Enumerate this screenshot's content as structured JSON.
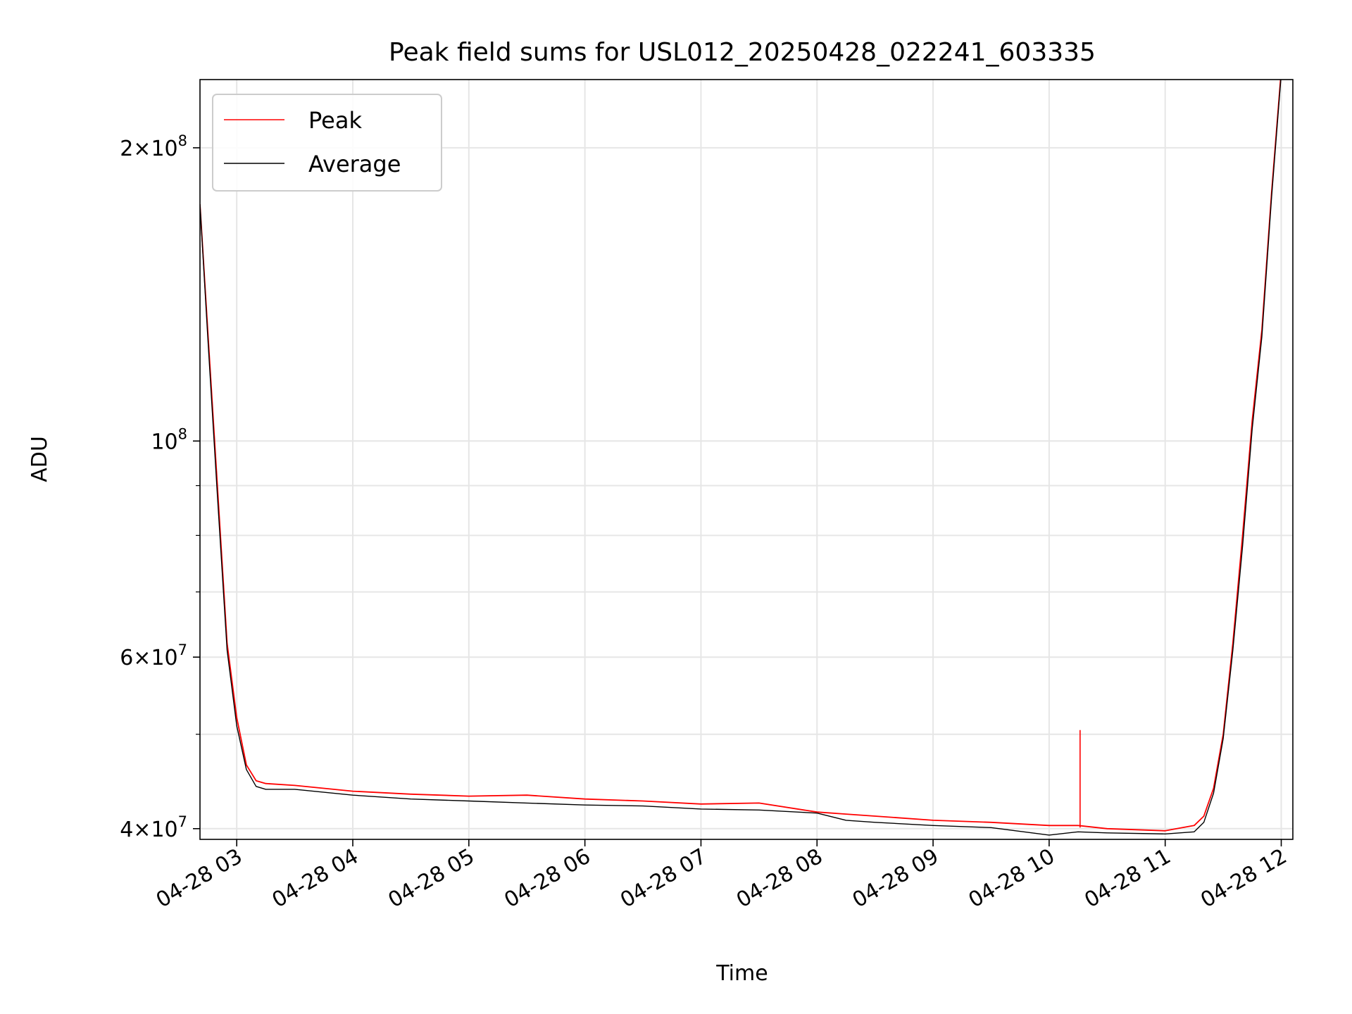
{
  "chart_data": {
    "type": "line",
    "title": "Peak field sums for USL012_20250428_022241_603335",
    "xlabel": "Time",
    "ylabel": "ADU",
    "yscale": "log",
    "grid": true,
    "legend_position": "top-left",
    "xlim": [
      "2025-04-28 02:41",
      "2025-04-28 12:06"
    ],
    "ylim": [
      39000000,
      235000000
    ],
    "x_ticks": [
      {
        "t": "2025-04-28 03:00",
        "label": "04-28 03"
      },
      {
        "t": "2025-04-28 04:00",
        "label": "04-28 04"
      },
      {
        "t": "2025-04-28 05:00",
        "label": "04-28 05"
      },
      {
        "t": "2025-04-28 06:00",
        "label": "04-28 06"
      },
      {
        "t": "2025-04-28 07:00",
        "label": "04-28 07"
      },
      {
        "t": "2025-04-28 08:00",
        "label": "04-28 08"
      },
      {
        "t": "2025-04-28 09:00",
        "label": "04-28 09"
      },
      {
        "t": "2025-04-28 10:00",
        "label": "04-28 10"
      },
      {
        "t": "2025-04-28 11:00",
        "label": "04-28 11"
      },
      {
        "t": "2025-04-28 12:00",
        "label": "04-28 12"
      }
    ],
    "y_ticks": [
      {
        "value": 40000000,
        "mant": "4",
        "exp": "7"
      },
      {
        "value": 60000000,
        "mant": "6",
        "exp": "7"
      },
      {
        "value": 100000000,
        "mant": "",
        "exp": "8"
      },
      {
        "value": 200000000,
        "mant": "2",
        "exp": "8"
      }
    ],
    "y_minor": [
      50000000,
      70000000,
      80000000,
      90000000
    ],
    "series": [
      {
        "name": "Peak",
        "color": "#ff0000",
        "x": [
          "2025-04-28 02:41",
          "2025-04-28 02:45",
          "2025-04-28 02:50",
          "2025-04-28 02:55",
          "2025-04-28 03:00",
          "2025-04-28 03:05",
          "2025-04-28 03:10",
          "2025-04-28 03:15",
          "2025-04-28 03:30",
          "2025-04-28 04:00",
          "2025-04-28 04:30",
          "2025-04-28 05:00",
          "2025-04-28 05:30",
          "2025-04-28 06:00",
          "2025-04-28 06:30",
          "2025-04-28 07:00",
          "2025-04-28 07:30",
          "2025-04-28 08:00",
          "2025-04-28 08:15",
          "2025-04-28 08:30",
          "2025-04-28 09:00",
          "2025-04-28 09:30",
          "2025-04-28 10:00",
          "2025-04-28 10:15",
          "2025-04-28 10:30",
          "2025-04-28 11:00",
          "2025-04-28 11:15",
          "2025-04-28 11:20",
          "2025-04-28 11:25",
          "2025-04-28 11:30",
          "2025-04-28 11:35",
          "2025-04-28 11:40",
          "2025-04-28 11:45",
          "2025-04-28 11:50",
          "2025-04-28 11:55",
          "2025-04-28 12:00"
        ],
        "values": [
          175000000,
          130000000,
          90000000,
          62000000,
          52000000,
          46500000,
          44800000,
          44500000,
          44300000,
          43700000,
          43400000,
          43200000,
          43300000,
          42900000,
          42700000,
          42400000,
          42500000,
          41600000,
          41400000,
          41200000,
          40800000,
          40600000,
          40300000,
          40300000,
          40000000,
          39800000,
          40300000,
          41200000,
          44000000,
          50000000,
          62000000,
          80000000,
          105000000,
          130000000,
          180000000,
          240000000
        ]
      },
      {
        "name": "Average",
        "color": "#000000",
        "x": [
          "2025-04-28 02:41",
          "2025-04-28 02:45",
          "2025-04-28 02:50",
          "2025-04-28 02:55",
          "2025-04-28 03:00",
          "2025-04-28 03:05",
          "2025-04-28 03:10",
          "2025-04-28 03:15",
          "2025-04-28 03:30",
          "2025-04-28 04:00",
          "2025-04-28 04:30",
          "2025-04-28 05:00",
          "2025-04-28 05:30",
          "2025-04-28 06:00",
          "2025-04-28 06:30",
          "2025-04-28 07:00",
          "2025-04-28 07:30",
          "2025-04-28 08:00",
          "2025-04-28 08:15",
          "2025-04-28 08:30",
          "2025-04-28 09:00",
          "2025-04-28 09:30",
          "2025-04-28 10:00",
          "2025-04-28 10:15",
          "2025-04-28 10:30",
          "2025-04-28 11:00",
          "2025-04-28 11:15",
          "2025-04-28 11:20",
          "2025-04-28 11:25",
          "2025-04-28 11:30",
          "2025-04-28 11:35",
          "2025-04-28 11:40",
          "2025-04-28 11:45",
          "2025-04-28 11:50",
          "2025-04-28 11:55",
          "2025-04-28 12:00"
        ],
        "values": [
          175000000,
          128000000,
          88000000,
          61000000,
          51000000,
          46000000,
          44200000,
          43900000,
          43900000,
          43300000,
          42900000,
          42700000,
          42500000,
          42300000,
          42200000,
          41900000,
          41800000,
          41500000,
          40800000,
          40600000,
          40300000,
          40100000,
          39400000,
          39700000,
          39600000,
          39500000,
          39700000,
          40600000,
          43500000,
          49500000,
          61000000,
          78000000,
          103000000,
          128000000,
          178000000,
          238000000
        ]
      }
    ],
    "annotations": [
      {
        "t": "2025-04-28 10:16",
        "series": "Peak",
        "value": 50500000
      }
    ]
  }
}
